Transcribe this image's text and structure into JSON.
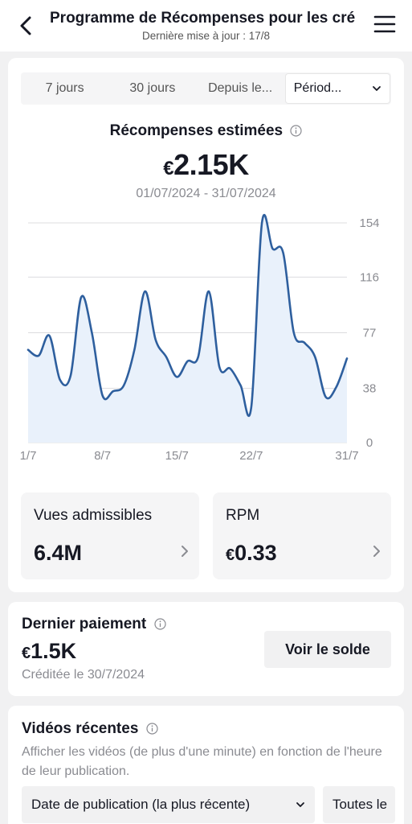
{
  "header": {
    "title": "Programme de Récompenses pour les cré",
    "subtitle": "Dernière mise à jour : 17/8"
  },
  "tabs": [
    {
      "label": "7 jours",
      "active": false
    },
    {
      "label": "30 jours",
      "active": false
    },
    {
      "label": "Depuis le...",
      "active": false
    },
    {
      "label": "Périod...",
      "active": true
    }
  ],
  "estimate": {
    "title": "Récompenses estimées",
    "currency": "€",
    "value": "2.15K",
    "range": "01/07/2024 - 31/07/2024"
  },
  "chart_data": {
    "type": "area",
    "x": [
      1,
      2,
      3,
      4,
      5,
      6,
      7,
      8,
      9,
      10,
      11,
      12,
      13,
      14,
      15,
      16,
      17,
      18,
      19,
      20,
      21,
      22,
      23,
      24,
      25,
      26,
      27,
      28,
      29,
      30,
      31
    ],
    "values": [
      65,
      61,
      75,
      44,
      47,
      102,
      77,
      33,
      36,
      40,
      65,
      106,
      72,
      60,
      46,
      57,
      60,
      106,
      53,
      52,
      40,
      25,
      154,
      136,
      133,
      77,
      70,
      60,
      32,
      39,
      59
    ],
    "xticks": [
      "1/7",
      "8/7",
      "15/7",
      "22/7",
      "31/7"
    ],
    "yticks": [
      "154",
      "116",
      "77",
      "38",
      "0"
    ],
    "ylim": [
      0,
      154
    ],
    "grid": true
  },
  "stats": [
    {
      "label": "Vues admissibles",
      "value": "6.4M",
      "currency": ""
    },
    {
      "label": "RPM",
      "value": "0.33",
      "currency": "€"
    }
  ],
  "payment": {
    "title": "Dernier paiement",
    "currency": "€",
    "value": "1.5K",
    "date": "Créditée le 30/7/2024",
    "button": "Voir le solde"
  },
  "videos": {
    "title": "Vidéos récentes",
    "description": "Afficher les vidéos (de plus d'une minute) en fonction de l'heure de leur publication.",
    "filter_sort": "Date de publication (la plus récente)",
    "filter_all": "Toutes le"
  }
}
